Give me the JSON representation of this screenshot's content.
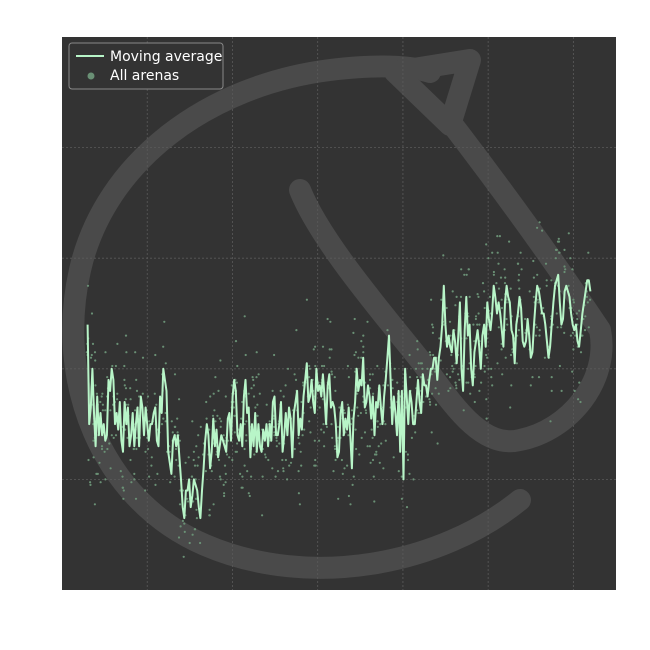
{
  "colors": {
    "background": "#ffffff",
    "plot_background": "#333333",
    "grid": "#5a5a5a",
    "watermark": "#4a4a4a",
    "line": "#b8f5c8",
    "points": "#6a9075",
    "legend_border": "#8a8a8a",
    "legend_text": "#ffffff"
  },
  "chart_data": {
    "type": "scatter",
    "title": "",
    "xlabel": "",
    "ylabel": "",
    "xlim": [
      0,
      130
    ],
    "ylim": [
      0,
      100
    ],
    "grid": true,
    "tick_labels_visible": false,
    "legend_position": "top-left",
    "legend": [
      {
        "label": "Moving average",
        "marker": "line"
      },
      {
        "label": "All arenas",
        "marker": "dot"
      }
    ],
    "series": [
      {
        "name": "Moving average",
        "kind": "line",
        "x_start": 6,
        "x_step": 1,
        "values": [
          48,
          30,
          33,
          40,
          32,
          26,
          35,
          28,
          32,
          28,
          30,
          27,
          28,
          38,
          36,
          40,
          38,
          30,
          32,
          29,
          34,
          27,
          25,
          34,
          30,
          33,
          26,
          28,
          32,
          26,
          30,
          33,
          26,
          35,
          33,
          28,
          33,
          30,
          27,
          30,
          30,
          32,
          33,
          27,
          26,
          35,
          32,
          40,
          38,
          36,
          25,
          23,
          21,
          27,
          28,
          26,
          28,
          24,
          20,
          15,
          13,
          18,
          18,
          20,
          15,
          17,
          20,
          19,
          18,
          15,
          13,
          18,
          22,
          27,
          30,
          28,
          22,
          25,
          31,
          26,
          29,
          24,
          26,
          28,
          27,
          26,
          25,
          31,
          32,
          27,
          35,
          38,
          36,
          28,
          27,
          30,
          26,
          35,
          38,
          32,
          33,
          24,
          30,
          26,
          32,
          25,
          30,
          26,
          25,
          29,
          27,
          30,
          26,
          30,
          27,
          34,
          35,
          28,
          28,
          30,
          34,
          25,
          28,
          32,
          28,
          33,
          31,
          24,
          32,
          34,
          36,
          28,
          31,
          29,
          35,
          38,
          41,
          34,
          35,
          38,
          34,
          32,
          40,
          36,
          37,
          35,
          39,
          35,
          30,
          37,
          39,
          33,
          34,
          33,
          30,
          24,
          25,
          32,
          34,
          28,
          31,
          29,
          33,
          28,
          22,
          31,
          34,
          40,
          36,
          38,
          37,
          42,
          33,
          34,
          37,
          35,
          31,
          35,
          28,
          34,
          33,
          37,
          33,
          30,
          35,
          38,
          42,
          46,
          38,
          30,
          35,
          32,
          28,
          36,
          25,
          36,
          20,
          40,
          35,
          30,
          36,
          34,
          30,
          30,
          34,
          38,
          34,
          32,
          39,
          37,
          37,
          35,
          38,
          40,
          40,
          42,
          42,
          38,
          42,
          44,
          48,
          55,
          48,
          44,
          46,
          44,
          43,
          47,
          45,
          41,
          46,
          52,
          40,
          36,
          47,
          53,
          46,
          48,
          40,
          37,
          43,
          45,
          47,
          44,
          40,
          46,
          48,
          44,
          52,
          49,
          47,
          50,
          55,
          53,
          50,
          52,
          50,
          47,
          44,
          52,
          55,
          53,
          52,
          47,
          46,
          41,
          48,
          50,
          53,
          51,
          45,
          44,
          45,
          49,
          46,
          42,
          43,
          48,
          52,
          55,
          54,
          52,
          50,
          50,
          48,
          45,
          42,
          44,
          48,
          52,
          55,
          56,
          57,
          52,
          48,
          49,
          54,
          55,
          54,
          53,
          50,
          48,
          47,
          48,
          45,
          44,
          47,
          50,
          52,
          54,
          56,
          56,
          54
        ]
      },
      {
        "name": "All arenas",
        "kind": "scatter",
        "count": 900,
        "seed": 17
      }
    ]
  }
}
